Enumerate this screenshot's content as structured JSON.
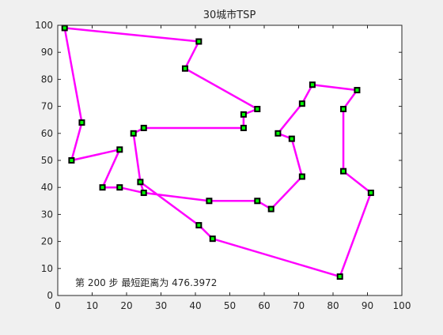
{
  "chart_data": {
    "type": "line",
    "title": "30城市TSP",
    "xlabel": "",
    "ylabel": "",
    "xlim": [
      0,
      100
    ],
    "ylim": [
      0,
      100
    ],
    "xticks": [
      0,
      10,
      20,
      30,
      40,
      50,
      60,
      70,
      80,
      90,
      100
    ],
    "yticks": [
      0,
      10,
      20,
      30,
      40,
      50,
      60,
      70,
      80,
      90,
      100
    ],
    "grid": false,
    "annotation": "第 200 步  最短距离为 476.3972",
    "colors": {
      "route": "#ff00ff",
      "marker_fill": "#00ff00",
      "marker_edge": "#000000",
      "axes_bg": "#ffffff",
      "figure_bg": "#f0f0f0"
    },
    "route": [
      {
        "x": 2,
        "y": 99
      },
      {
        "x": 41,
        "y": 94
      },
      {
        "x": 37,
        "y": 84
      },
      {
        "x": 58,
        "y": 69
      },
      {
        "x": 54,
        "y": 67
      },
      {
        "x": 54,
        "y": 62
      },
      {
        "x": 25,
        "y": 62
      },
      {
        "x": 22,
        "y": 60
      },
      {
        "x": 24,
        "y": 42
      },
      {
        "x": 25,
        "y": 38
      },
      {
        "x": 18,
        "y": 40
      },
      {
        "x": 13,
        "y": 40
      },
      {
        "x": 18,
        "y": 54
      },
      {
        "x": 4,
        "y": 50
      },
      {
        "x": 7,
        "y": 64
      },
      {
        "x": 2,
        "y": 99
      }
    ],
    "route2": [
      {
        "x": 24,
        "y": 42
      },
      {
        "x": 41,
        "y": 26
      },
      {
        "x": 45,
        "y": 21
      },
      {
        "x": 82,
        "y": 7
      },
      {
        "x": 91,
        "y": 38
      },
      {
        "x": 83,
        "y": 46
      },
      {
        "x": 83,
        "y": 69
      },
      {
        "x": 87,
        "y": 76
      },
      {
        "x": 74,
        "y": 78
      },
      {
        "x": 71,
        "y": 71
      },
      {
        "x": 64,
        "y": 60
      },
      {
        "x": 68,
        "y": 58
      },
      {
        "x": 71,
        "y": 44
      },
      {
        "x": 62,
        "y": 32
      },
      {
        "x": 58,
        "y": 35
      },
      {
        "x": 44,
        "y": 35
      },
      {
        "x": 25,
        "y": 38
      }
    ]
  }
}
